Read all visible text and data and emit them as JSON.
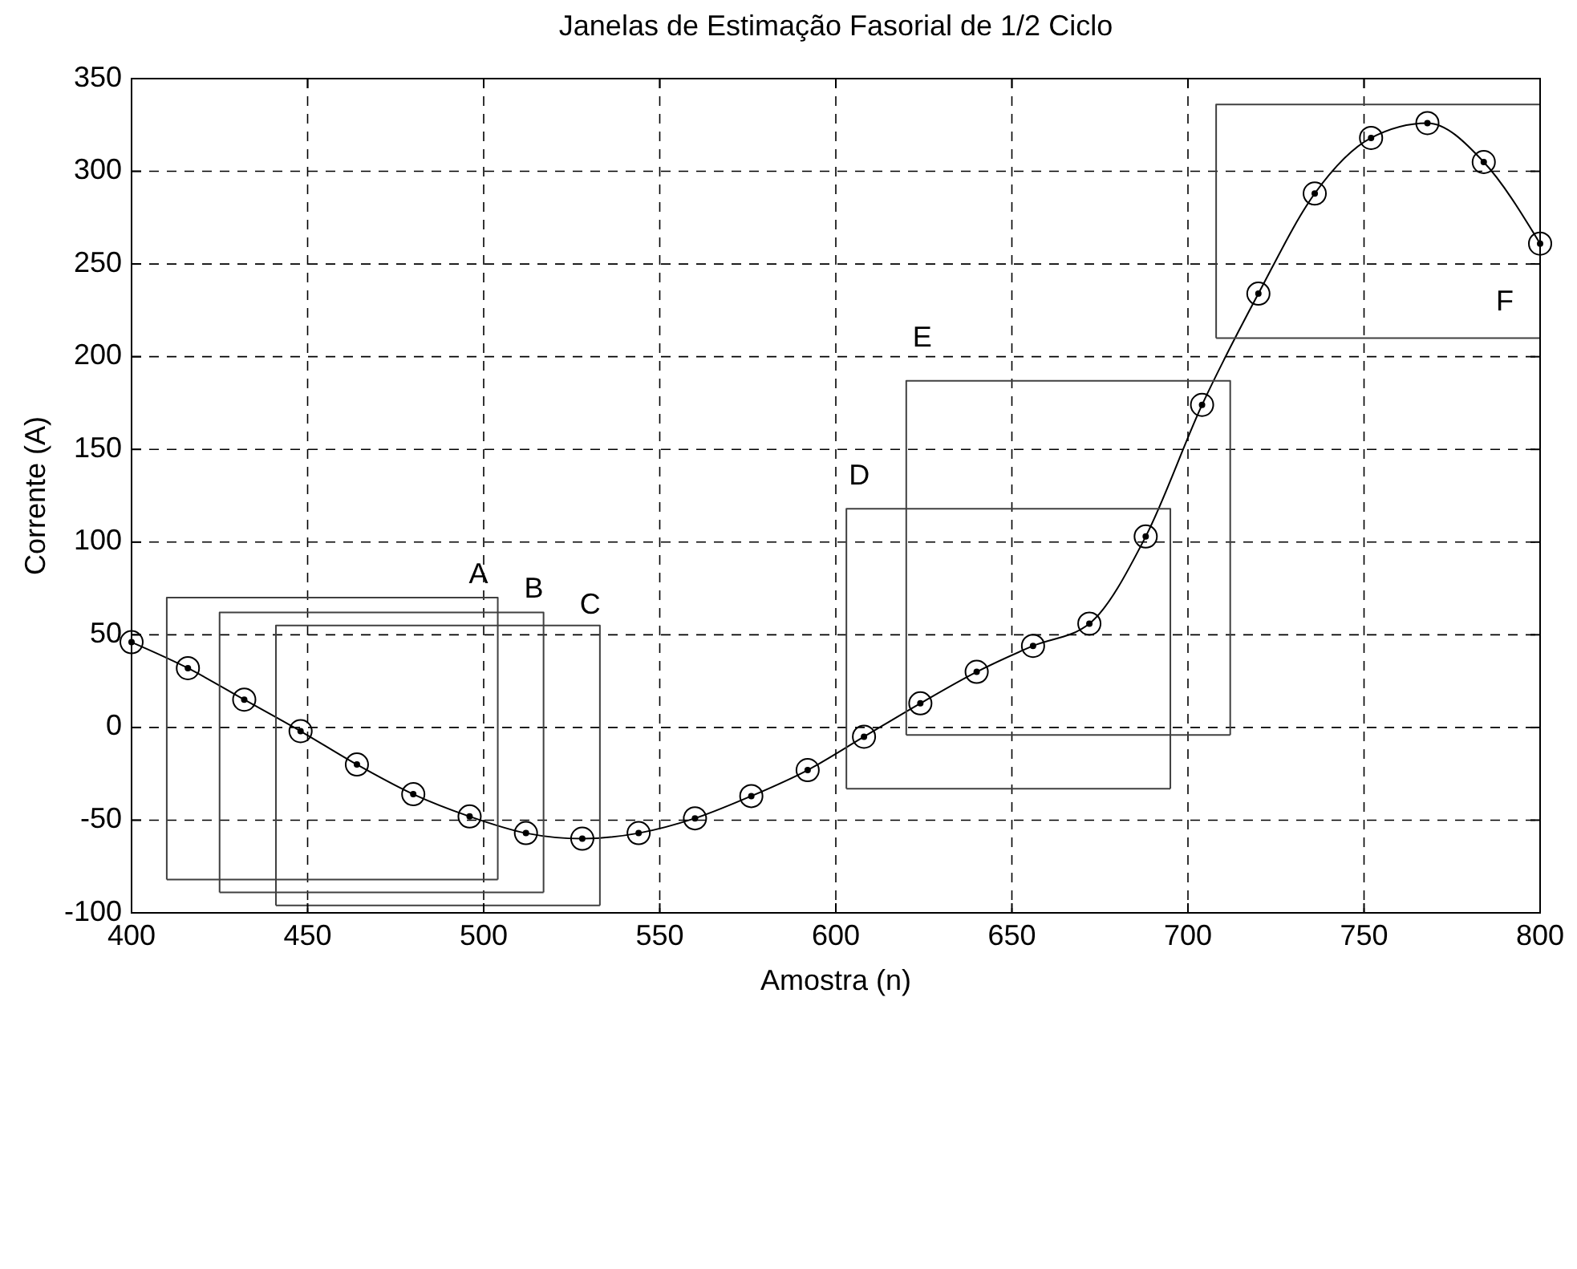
{
  "chart_data": {
    "type": "line",
    "title": "Janelas de Estimação Fasorial de 1/2 Ciclo",
    "xlabel": "Amostra (n)",
    "ylabel": "Corrente (A)",
    "xlim": [
      400,
      800
    ],
    "xticks": [
      400,
      450,
      500,
      550,
      600,
      650,
      700,
      750,
      800
    ],
    "ylim": [
      -100,
      350
    ],
    "yticks": [
      -100,
      -50,
      0,
      50,
      100,
      150,
      200,
      250,
      300,
      350
    ],
    "grid": true,
    "series": [
      {
        "color": "#000000",
        "marker": "circle",
        "x": [
          400,
          416,
          432,
          448,
          464,
          480,
          496,
          512,
          528,
          544,
          560,
          576,
          592,
          608,
          624,
          640,
          656,
          672,
          688,
          704,
          720,
          736,
          752,
          768,
          784,
          800
        ],
        "values": [
          46,
          32,
          15,
          -2,
          -20,
          -36,
          -48,
          -57,
          -60,
          -57,
          -49,
          -37,
          -23,
          -5,
          13,
          30,
          44,
          56,
          103,
          174,
          234,
          288,
          318,
          326,
          305,
          261
        ]
      },
      {
        "type": "line",
        "color": "#404040",
        "marker": "none",
        "x": [
          410,
          410,
          504,
          504
        ],
        "values": [
          -82,
          70,
          70,
          -82
        ]
      },
      {
        "type": "line",
        "color": "#404040",
        "marker": "none",
        "x": [
          410,
          504
        ],
        "values": [
          -82,
          -82
        ]
      },
      {
        "type": "line",
        "color": "#404040",
        "marker": "none",
        "x": [
          425,
          425,
          517,
          517
        ],
        "values": [
          -89,
          62,
          62,
          -89
        ]
      },
      {
        "type": "line",
        "color": "#404040",
        "marker": "none",
        "x": [
          425,
          517
        ],
        "values": [
          -89,
          -89
        ]
      },
      {
        "type": "line",
        "color": "#404040",
        "marker": "none",
        "x": [
          441,
          441,
          533,
          533
        ],
        "values": [
          -96,
          55,
          55,
          -96
        ]
      },
      {
        "type": "line",
        "color": "#404040",
        "marker": "none",
        "x": [
          441,
          533
        ],
        "values": [
          -96,
          -96
        ]
      },
      {
        "type": "line",
        "color": "#404040",
        "marker": "none",
        "x": [
          603,
          603,
          695,
          695
        ],
        "values": [
          -33,
          118,
          118,
          -33
        ]
      },
      {
        "type": "line",
        "color": "#404040",
        "marker": "none",
        "x": [
          603,
          695
        ],
        "values": [
          -33,
          -33
        ]
      },
      {
        "type": "line",
        "color": "#404040",
        "marker": "none",
        "x": [
          620,
          620,
          712,
          712
        ],
        "values": [
          -4,
          187,
          187,
          -4
        ]
      },
      {
        "type": "line",
        "color": "#404040",
        "marker": "none",
        "x": [
          620,
          712
        ],
        "values": [
          -4,
          -4
        ]
      },
      {
        "type": "line",
        "color": "#404040",
        "marker": "none",
        "x": [
          708,
          708,
          800,
          800
        ],
        "values": [
          210,
          336,
          336,
          210
        ]
      },
      {
        "type": "line",
        "color": "#404040",
        "marker": "none",
        "x": [
          708,
          800
        ],
        "values": [
          210,
          210
        ]
      }
    ],
    "annotations": [
      {
        "text": "A",
        "x": 504,
        "y": 70
      },
      {
        "text": "B",
        "x": 517,
        "y": 62
      },
      {
        "text": "C",
        "x": 533,
        "y": 55
      },
      {
        "text": "D",
        "x": 603,
        "y": 118
      },
      {
        "text": "E",
        "x": 620,
        "y": 187
      },
      {
        "text": "F",
        "x": 800,
        "y": 210
      }
    ]
  }
}
